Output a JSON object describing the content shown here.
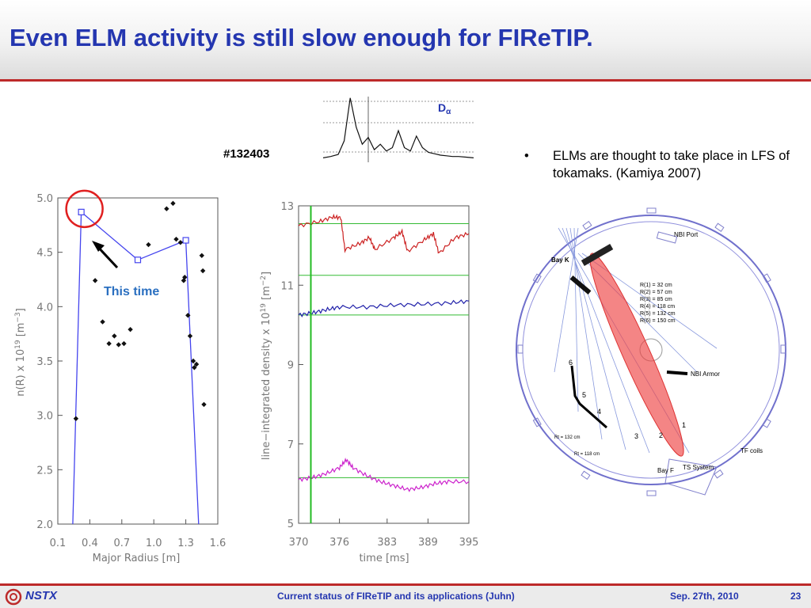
{
  "slide": {
    "title": "Even ELM activity is still slow enough for FIReTIP.",
    "shot_number": "#132403",
    "bullet_marker": "•",
    "bullet_text": "ELMs are thought to take place in LFS of tokamaks. (Kamiya 2007)",
    "annotation": "This time",
    "d_alpha_label": "D",
    "d_alpha_sub": "α"
  },
  "footer": {
    "logo_text": "NSTX",
    "center": "Current status of FIReTIP and its applications (Juhn)",
    "date": "Sep. 27th, 2010",
    "page": "23"
  },
  "colors": {
    "title": "#2436b0",
    "accent_red": "#bd2a2a",
    "profile_line": "#4444ee",
    "trace_red": "#cc2222",
    "trace_blue": "#2222aa",
    "trace_magenta": "#cc22cc",
    "marker_green": "#22bb22",
    "beam_red": "#ee4444"
  },
  "chart_data": [
    {
      "type": "line",
      "name": "D-alpha signal",
      "x": [
        0,
        0.05,
        0.1,
        0.14,
        0.18,
        0.22,
        0.26,
        0.3,
        0.34,
        0.38,
        0.42,
        0.46,
        0.5,
        0.54,
        0.58,
        0.62,
        0.66,
        0.7,
        0.74,
        0.78,
        0.82,
        0.86,
        0.9,
        0.95,
        1.0
      ],
      "values": [
        0.1,
        0.12,
        0.15,
        0.35,
        0.98,
        0.55,
        0.3,
        0.4,
        0.22,
        0.3,
        0.2,
        0.25,
        0.5,
        0.25,
        0.2,
        0.42,
        0.25,
        0.18,
        0.16,
        0.14,
        0.13,
        0.12,
        0.12,
        0.11,
        0.1
      ],
      "marker_fraction": 0.3
    },
    {
      "type": "scatter",
      "xlabel": "Major Radius [m]",
      "ylabel": "n(R) x 10^19 [m^-3]",
      "xlim": [
        0.1,
        1.6
      ],
      "ylim": [
        2.0,
        5.0
      ],
      "xticks": [
        "0.1",
        "0.4",
        "0.7",
        "1.0",
        "1.3",
        "1.6"
      ],
      "yticks": [
        "2.0",
        "2.5",
        "3.0",
        "3.5",
        "4.0",
        "4.5",
        "5.0"
      ],
      "series": [
        {
          "kind": "line",
          "x": [
            0.24,
            0.32,
            0.85,
            1.3,
            1.42
          ],
          "y": [
            2.0,
            4.87,
            4.43,
            4.61,
            2.0
          ],
          "marker_x": [
            0.32,
            0.85,
            1.3
          ]
        },
        {
          "kind": "points",
          "x": [
            0.27,
            0.45,
            0.52,
            0.58,
            0.63,
            0.67,
            0.72,
            0.78,
            0.95,
            1.12,
            1.18,
            1.21,
            1.25,
            1.28,
            1.29,
            1.32,
            1.34,
            1.37,
            1.38,
            1.4,
            1.45,
            1.46,
            1.47
          ],
          "y": [
            2.97,
            4.24,
            3.86,
            3.66,
            3.73,
            3.65,
            3.66,
            3.79,
            4.57,
            4.9,
            4.95,
            4.62,
            4.59,
            4.24,
            4.27,
            3.92,
            3.73,
            3.5,
            3.44,
            3.47,
            4.47,
            4.33,
            3.1
          ]
        }
      ],
      "highlight_point": [
        0.32,
        4.87
      ]
    },
    {
      "type": "line",
      "xlabel": "time [ms]",
      "ylabel": "line-integrated density x 10^19 [m^-2]",
      "xlim": [
        370,
        395
      ],
      "ylim": [
        5,
        13
      ],
      "xticks": [
        "370",
        "376",
        "383",
        "389",
        "395"
      ],
      "yticks": [
        "5",
        "7",
        "9",
        "11",
        "13"
      ],
      "vertical_marker": 371.8,
      "reference_levels": [
        12.55,
        11.25,
        10.25,
        6.15
      ],
      "series": [
        {
          "color": "red",
          "x": [
            370,
            373,
            375,
            376.2,
            376.8,
            379,
            380.4,
            381.2,
            384,
            385.2,
            386,
            388.5,
            389.8,
            390.6,
            393,
            395
          ],
          "y": [
            12.5,
            12.6,
            12.72,
            12.7,
            11.9,
            12.05,
            12.2,
            11.9,
            12.2,
            12.35,
            11.85,
            12.15,
            12.3,
            11.8,
            12.2,
            12.3
          ]
        },
        {
          "color": "blue",
          "x": [
            370,
            372,
            374,
            376,
            380,
            384,
            388,
            392,
            395
          ],
          "y": [
            10.25,
            10.3,
            10.38,
            10.45,
            10.45,
            10.5,
            10.52,
            10.55,
            10.6
          ]
        },
        {
          "color": "magenta",
          "x": [
            370,
            372,
            374,
            376,
            377,
            378,
            380,
            382,
            384,
            386,
            388,
            390,
            392,
            395
          ],
          "y": [
            6.1,
            6.15,
            6.25,
            6.4,
            6.6,
            6.4,
            6.2,
            6.05,
            5.95,
            5.85,
            5.9,
            6.0,
            6.05,
            6.05
          ]
        }
      ]
    }
  ],
  "diagram": {
    "labels": [
      "NBI Port",
      "Bay K",
      "NBI Armor",
      "Bay F",
      "TS System",
      "TF coils"
    ],
    "radii": [
      "R(1) = 32 cm",
      "R(2) = 57 cm",
      "R(3) = 85 cm",
      "R(4) = 118 cm",
      "R(5) = 132 cm",
      "R(6) = 150 cm"
    ],
    "numbers": [
      "1",
      "2",
      "3",
      "4",
      "5",
      "6"
    ],
    "rt_labels": [
      "Rt = 132 cm",
      "Rt = 118 cm"
    ]
  }
}
